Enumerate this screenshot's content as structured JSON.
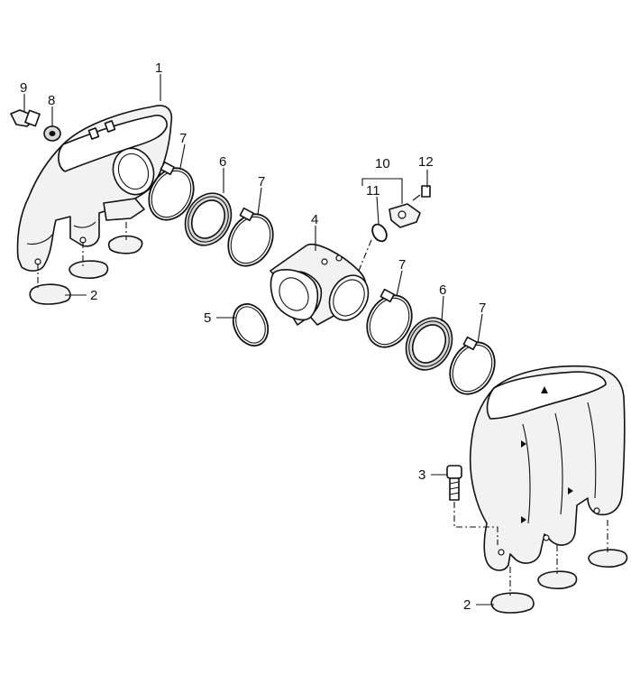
{
  "callouts": {
    "c1": "1",
    "c2a": "2",
    "c2b": "2",
    "c3": "3",
    "c4": "4",
    "c5": "5",
    "c6a": "6",
    "c6b": "6",
    "c7a": "7",
    "c7b": "7",
    "c7c": "7",
    "c7d": "7",
    "c8": "8",
    "c9": "9",
    "c10": "10",
    "c11": "11",
    "c12": "12"
  }
}
